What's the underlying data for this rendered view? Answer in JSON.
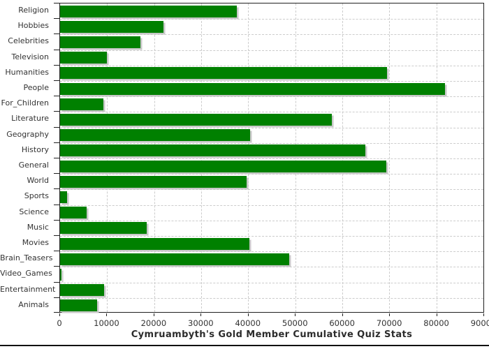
{
  "chart_data": {
    "type": "bar",
    "orientation": "horizontal",
    "title": "Cymruambyth's Gold Member Cumulative Quiz Stats",
    "categories": [
      "Religion",
      "Hobbies",
      "Celebrities",
      "Television",
      "Humanities",
      "People",
      "For_Children",
      "Literature",
      "Geography",
      "History",
      "General",
      "World",
      "Sports",
      "Science",
      "Music",
      "Movies",
      "Brain_Teasers",
      "Video_Games",
      "Entertainment",
      "Animals"
    ],
    "values": [
      37500,
      22000,
      17100,
      9900,
      69500,
      81900,
      9200,
      57800,
      40400,
      64900,
      69400,
      39700,
      1450,
      5700,
      18400,
      40300,
      48700,
      300,
      9400,
      7800
    ],
    "xlabel": "",
    "ylabel": "",
    "xlim": [
      0,
      90000
    ],
    "xticks": [
      0,
      10000,
      20000,
      30000,
      40000,
      50000,
      60000,
      70000,
      80000,
      90000
    ],
    "xtick_labels": [
      "0",
      "10000",
      "20000",
      "30000",
      "40000",
      "50000",
      "60000",
      "70000",
      "80000",
      "90000"
    ],
    "grid": "dashed",
    "legend_position": "none",
    "colors": {
      "bar": "#008000",
      "bar_shadow": "#c8c8c8",
      "grid": "#cccccc",
      "axis": "#1f1f1f",
      "text": "#333333",
      "title": "#2b2b2b",
      "background": "#ffffff"
    }
  }
}
